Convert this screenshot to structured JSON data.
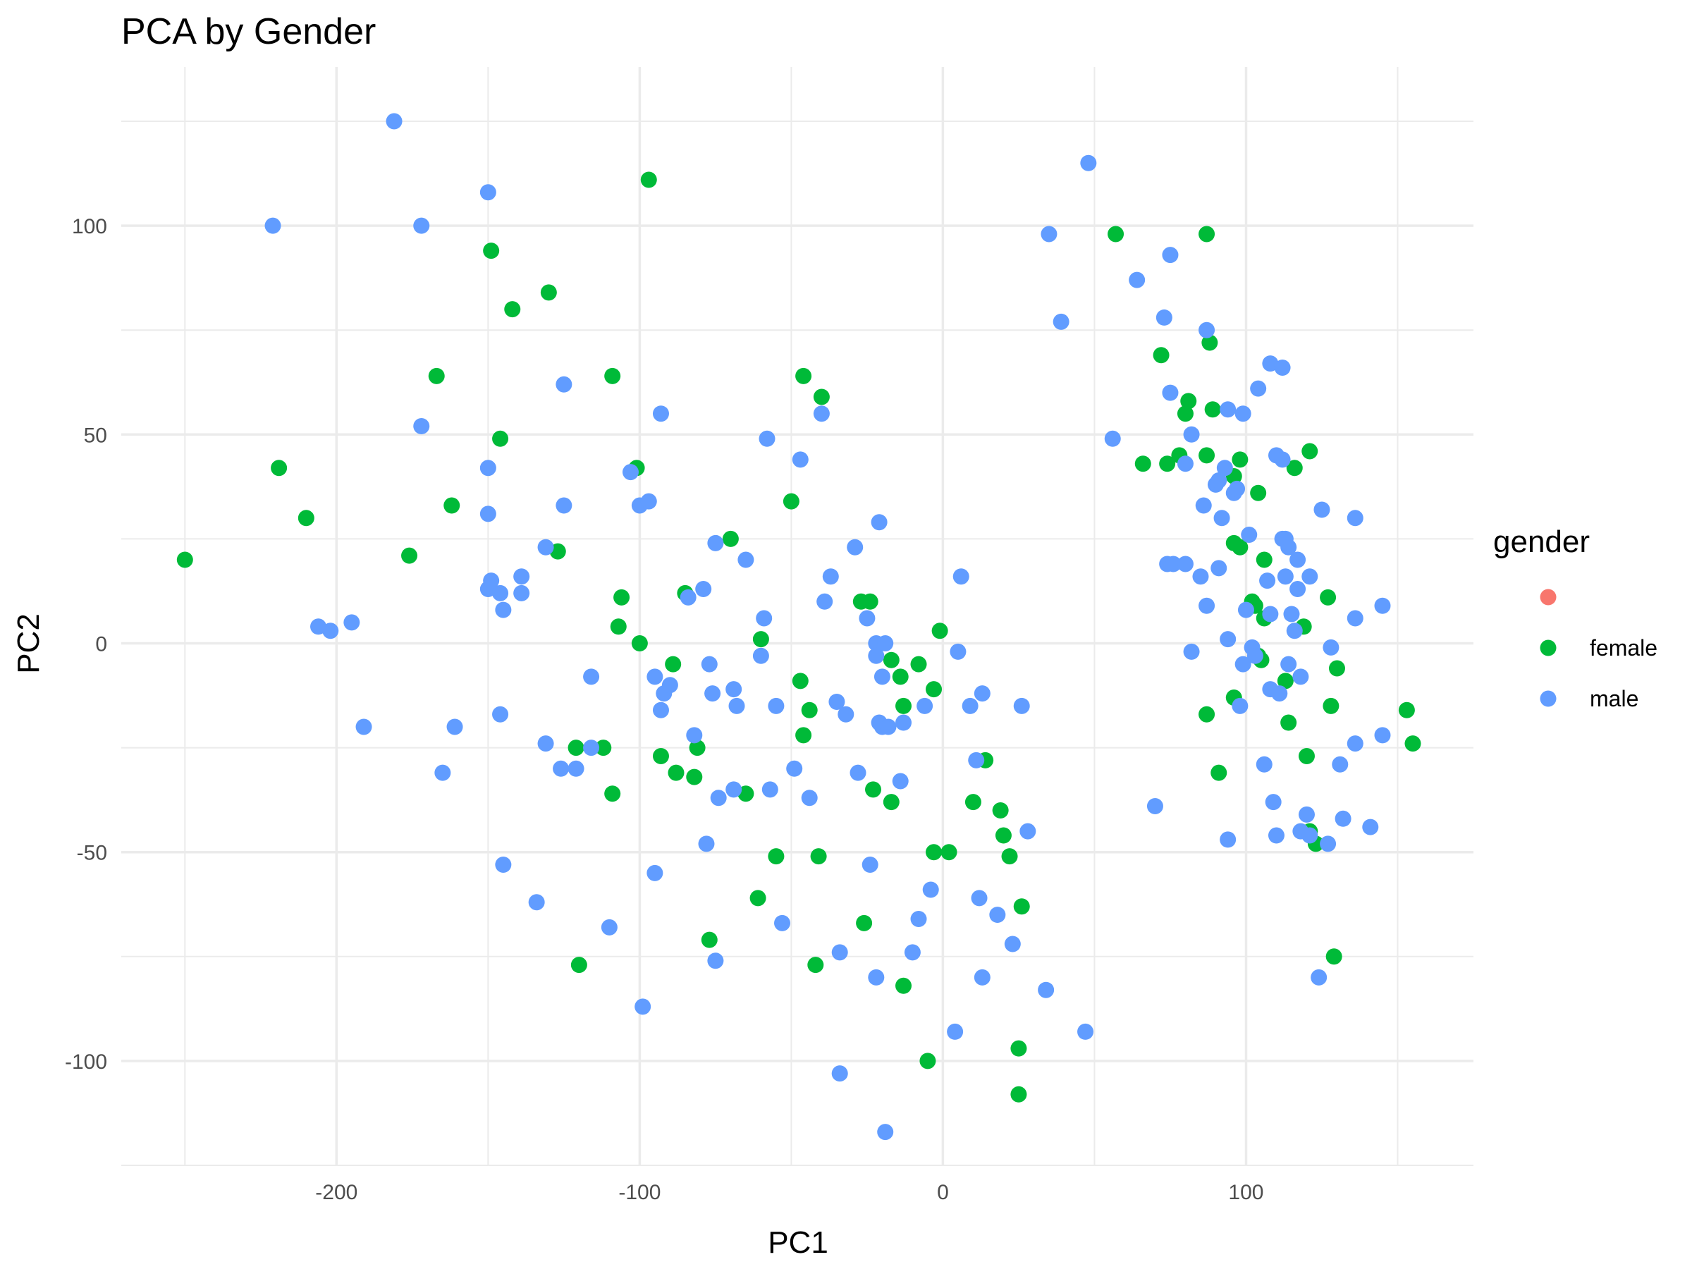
{
  "chart_data": {
    "type": "scatter",
    "title": "PCA by Gender",
    "xlabel": "PC1",
    "ylabel": "PC2",
    "xlim": [
      -271,
      175
    ],
    "ylim": [
      -125,
      138
    ],
    "x_ticks": [
      -200,
      -100,
      0,
      100
    ],
    "y_ticks": [
      -100,
      -50,
      0,
      50,
      100
    ],
    "x_tick_labels": [
      "-200",
      "-100",
      "0",
      "100"
    ],
    "y_tick_labels": [
      "-100",
      "-50",
      "0",
      "50",
      "100"
    ],
    "grid": true,
    "legend": {
      "title": "gender",
      "placement": "right",
      "entries": [
        {
          "label": "",
          "color": "#F8766D"
        },
        {
          "label": "female",
          "color": "#00BA38"
        },
        {
          "label": "male",
          "color": "#619CFF"
        }
      ]
    },
    "series": [
      {
        "name": "female",
        "color": "#00BA38",
        "points": [
          [
            -250,
            20
          ],
          [
            -219,
            42
          ],
          [
            -210,
            30
          ],
          [
            -176,
            21
          ],
          [
            -167,
            64
          ],
          [
            -162,
            33
          ],
          [
            -149,
            94
          ],
          [
            -146,
            49
          ],
          [
            -142,
            80
          ],
          [
            -130,
            84
          ],
          [
            -127,
            22
          ],
          [
            -109,
            64
          ],
          [
            -106,
            11
          ],
          [
            -107,
            4
          ],
          [
            -101,
            42
          ],
          [
            -100,
            0
          ],
          [
            -97,
            111
          ],
          [
            -85,
            12
          ],
          [
            -89,
            -5
          ],
          [
            -93,
            -27
          ],
          [
            -88,
            -31
          ],
          [
            -82,
            -32
          ],
          [
            -81,
            -25
          ],
          [
            -77,
            -71
          ],
          [
            -70,
            25
          ],
          [
            -65,
            -36
          ],
          [
            -60,
            1
          ],
          [
            -61,
            -61
          ],
          [
            -55,
            -51
          ],
          [
            -50,
            34
          ],
          [
            -46,
            64
          ],
          [
            -40,
            59
          ],
          [
            -47,
            -9
          ],
          [
            -44,
            -16
          ],
          [
            -46,
            -22
          ],
          [
            -41,
            -51
          ],
          [
            -42,
            -77
          ],
          [
            -27,
            10
          ],
          [
            -24,
            10
          ],
          [
            -17,
            -4
          ],
          [
            -14,
            -8
          ],
          [
            -13,
            -15
          ],
          [
            -8,
            -5
          ],
          [
            -3,
            -11
          ],
          [
            -1,
            3
          ],
          [
            -23,
            -35
          ],
          [
            -17,
            -38
          ],
          [
            -26,
            -67
          ],
          [
            -13,
            -82
          ],
          [
            -3,
            -50
          ],
          [
            2,
            -50
          ],
          [
            -5,
            -100
          ],
          [
            10,
            -38
          ],
          [
            14,
            -28
          ],
          [
            19,
            -40
          ],
          [
            20,
            -46
          ],
          [
            22,
            -51
          ],
          [
            26,
            -63
          ],
          [
            25,
            -97
          ],
          [
            25,
            -108
          ],
          [
            57,
            98
          ],
          [
            66,
            43
          ],
          [
            72,
            69
          ],
          [
            74,
            43
          ],
          [
            78,
            45
          ],
          [
            80,
            55
          ],
          [
            81,
            58
          ],
          [
            87,
            98
          ],
          [
            88,
            72
          ],
          [
            89,
            56
          ],
          [
            87,
            45
          ],
          [
            96,
            40
          ],
          [
            96,
            24
          ],
          [
            98,
            44
          ],
          [
            98,
            23
          ],
          [
            102,
            10
          ],
          [
            103,
            9
          ],
          [
            104,
            -3
          ],
          [
            104,
            36
          ],
          [
            106,
            20
          ],
          [
            106,
            6
          ],
          [
            105,
            -4
          ],
          [
            113,
            -9
          ],
          [
            114,
            -19
          ],
          [
            116,
            42
          ],
          [
            119,
            4
          ],
          [
            121,
            46
          ],
          [
            120,
            -27
          ],
          [
            121,
            -45
          ],
          [
            123,
            -48
          ],
          [
            127,
            11
          ],
          [
            128,
            -15
          ],
          [
            130,
            -6
          ],
          [
            129,
            -75
          ],
          [
            153,
            -16
          ],
          [
            155,
            -24
          ],
          [
            87,
            -17
          ],
          [
            91,
            -31
          ],
          [
            96,
            -13
          ],
          [
            -109,
            -36
          ],
          [
            -112,
            -25
          ],
          [
            -121,
            -25
          ],
          [
            -120,
            -77
          ]
        ]
      },
      {
        "name": "male",
        "color": "#619CFF",
        "points": [
          [
            -181,
            125
          ],
          [
            -221,
            100
          ],
          [
            -172,
            100
          ],
          [
            -150,
            108
          ],
          [
            -172,
            52
          ],
          [
            -150,
            42
          ],
          [
            -150,
            31
          ],
          [
            -150,
            13
          ],
          [
            -149,
            15
          ],
          [
            -146,
            12
          ],
          [
            -145,
            8
          ],
          [
            -139,
            16
          ],
          [
            -139,
            12
          ],
          [
            -131,
            23
          ],
          [
            -125,
            62
          ],
          [
            -125,
            33
          ],
          [
            -146,
            -17
          ],
          [
            -145,
            -53
          ],
          [
            -206,
            4
          ],
          [
            -202,
            3
          ],
          [
            -195,
            5
          ],
          [
            -191,
            -20
          ],
          [
            -165,
            -31
          ],
          [
            -161,
            -20
          ],
          [
            -134,
            -62
          ],
          [
            -131,
            -24
          ],
          [
            -126,
            -30
          ],
          [
            -121,
            -30
          ],
          [
            -116,
            -8
          ],
          [
            -116,
            -25
          ],
          [
            -110,
            -68
          ],
          [
            -103,
            41
          ],
          [
            -100,
            33
          ],
          [
            -97,
            34
          ],
          [
            -95,
            -8
          ],
          [
            -93,
            55
          ],
          [
            -93,
            -16
          ],
          [
            -92,
            -12
          ],
          [
            -90,
            -10
          ],
          [
            -84,
            11
          ],
          [
            -82,
            -22
          ],
          [
            -79,
            13
          ],
          [
            -77,
            -5
          ],
          [
            -76,
            -12
          ],
          [
            -75,
            24
          ],
          [
            -74,
            -37
          ],
          [
            -78,
            -48
          ],
          [
            -75,
            -76
          ],
          [
            -95,
            -55
          ],
          [
            -99,
            -87
          ],
          [
            -69,
            -11
          ],
          [
            -68,
            -15
          ],
          [
            -69,
            -35
          ],
          [
            -65,
            20
          ],
          [
            -60,
            -3
          ],
          [
            -59,
            6
          ],
          [
            -57,
            -35
          ],
          [
            -55,
            -15
          ],
          [
            -58,
            49
          ],
          [
            -53,
            -67
          ],
          [
            -49,
            -30
          ],
          [
            -47,
            44
          ],
          [
            -44,
            -37
          ],
          [
            -40,
            55
          ],
          [
            -39,
            10
          ],
          [
            -37,
            16
          ],
          [
            -35,
            -14
          ],
          [
            -32,
            -17
          ],
          [
            -34,
            -74
          ],
          [
            -29,
            23
          ],
          [
            -28,
            -31
          ],
          [
            -25,
            6
          ],
          [
            -24,
            -53
          ],
          [
            -21,
            29
          ],
          [
            -22,
            0
          ],
          [
            -22,
            -3
          ],
          [
            -20,
            -8
          ],
          [
            -19,
            0
          ],
          [
            -21,
            -19
          ],
          [
            -20,
            -20
          ],
          [
            -18,
            -20
          ],
          [
            -14,
            -33
          ],
          [
            -22,
            -80
          ],
          [
            -10,
            -74
          ],
          [
            -8,
            -66
          ],
          [
            -6,
            -15
          ],
          [
            -4,
            -59
          ],
          [
            -34,
            -103
          ],
          [
            -19,
            -117
          ],
          [
            -13,
            -19
          ],
          [
            6,
            16
          ],
          [
            5,
            -2
          ],
          [
            9,
            -15
          ],
          [
            11,
            -28
          ],
          [
            13,
            -12
          ],
          [
            12,
            -61
          ],
          [
            13,
            -80
          ],
          [
            18,
            -65
          ],
          [
            23,
            -72
          ],
          [
            26,
            -15
          ],
          [
            28,
            -45
          ],
          [
            4,
            -93
          ],
          [
            35,
            98
          ],
          [
            39,
            77
          ],
          [
            34,
            -83
          ],
          [
            48,
            115
          ],
          [
            47,
            -93
          ],
          [
            56,
            49
          ],
          [
            64,
            87
          ],
          [
            75,
            93
          ],
          [
            73,
            78
          ],
          [
            75,
            60
          ],
          [
            80,
            43
          ],
          [
            82,
            50
          ],
          [
            87,
            75
          ],
          [
            85,
            16
          ],
          [
            86,
            33
          ],
          [
            87,
            9
          ],
          [
            90,
            38
          ],
          [
            91,
            39
          ],
          [
            92,
            30
          ],
          [
            91,
            18
          ],
          [
            93,
            42
          ],
          [
            94,
            56
          ],
          [
            96,
            36
          ],
          [
            97,
            37
          ],
          [
            99,
            55
          ],
          [
            101,
            26
          ],
          [
            100,
            8
          ],
          [
            99,
            -5
          ],
          [
            102,
            -1
          ],
          [
            103,
            -3
          ],
          [
            104,
            61
          ],
          [
            106,
            -29
          ],
          [
            107,
            15
          ],
          [
            108,
            7
          ],
          [
            108,
            67
          ],
          [
            110,
            45
          ],
          [
            112,
            66
          ],
          [
            112,
            44
          ],
          [
            112,
            25
          ],
          [
            113,
            25
          ],
          [
            113,
            16
          ],
          [
            114,
            -5
          ],
          [
            114,
            23
          ],
          [
            115,
            7
          ],
          [
            116,
            3
          ],
          [
            117,
            20
          ],
          [
            117,
            13
          ],
          [
            118,
            -8
          ],
          [
            118,
            -45
          ],
          [
            120,
            -41
          ],
          [
            121,
            -46
          ],
          [
            121,
            16
          ],
          [
            124,
            -80
          ],
          [
            125,
            32
          ],
          [
            127,
            -48
          ],
          [
            128,
            -1
          ],
          [
            131,
            -29
          ],
          [
            132,
            -42
          ],
          [
            136,
            30
          ],
          [
            136,
            6
          ],
          [
            136,
            -24
          ],
          [
            141,
            -44
          ],
          [
            145,
            -22
          ],
          [
            145,
            9
          ],
          [
            74,
            19
          ],
          [
            76,
            19
          ],
          [
            80,
            19
          ],
          [
            82,
            -2
          ],
          [
            94,
            1
          ],
          [
            94,
            -47
          ],
          [
            98,
            -15
          ],
          [
            108,
            -11
          ],
          [
            109,
            -38
          ],
          [
            110,
            -46
          ],
          [
            111,
            -12
          ],
          [
            70,
            -39
          ]
        ]
      }
    ]
  }
}
